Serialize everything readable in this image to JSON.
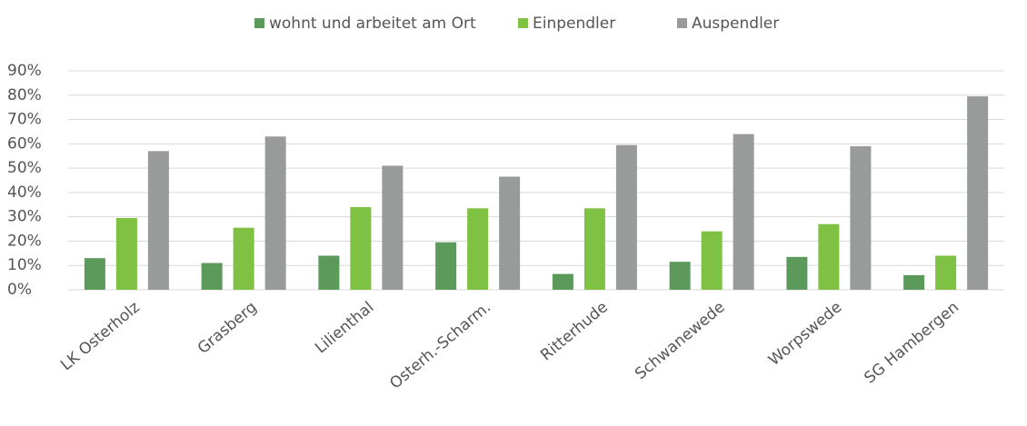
{
  "chart_data": {
    "type": "bar",
    "categories": [
      "LK Osterholz",
      "Grasberg",
      "Lilienthal",
      "Osterh.-Scharm.",
      "Ritterhude",
      "Schwanewede",
      "Worpswede",
      "SG Hambergen"
    ],
    "series": [
      {
        "name": "wohnt und arbeitet am Ort",
        "color": "#5b9a5b",
        "values": [
          13,
          11,
          14,
          19.5,
          6.5,
          11.5,
          13.5,
          6
        ]
      },
      {
        "name": "Einpendler",
        "color": "#7fc142",
        "values": [
          29.5,
          25.5,
          34,
          33.5,
          33.5,
          24,
          27,
          14
        ]
      },
      {
        "name": "Auspendler",
        "color": "#999a9a",
        "values": [
          57,
          63,
          51,
          46.5,
          59.5,
          64,
          59,
          79.5
        ]
      }
    ],
    "ylim": [
      0,
      90
    ],
    "yticks": [
      {
        "value": 0,
        "label": "0%"
      },
      {
        "value": 10,
        "label": "10%"
      },
      {
        "value": 20,
        "label": "20%"
      },
      {
        "value": 30,
        "label": "30%"
      },
      {
        "value": 40,
        "label": "40%"
      },
      {
        "value": 50,
        "label": "50%"
      },
      {
        "value": 60,
        "label": "60%"
      },
      {
        "value": 70,
        "label": "70%"
      },
      {
        "value": 80,
        "label": "80%"
      },
      {
        "value": 90,
        "label": "90%"
      }
    ],
    "grid": true,
    "legend": "top"
  }
}
